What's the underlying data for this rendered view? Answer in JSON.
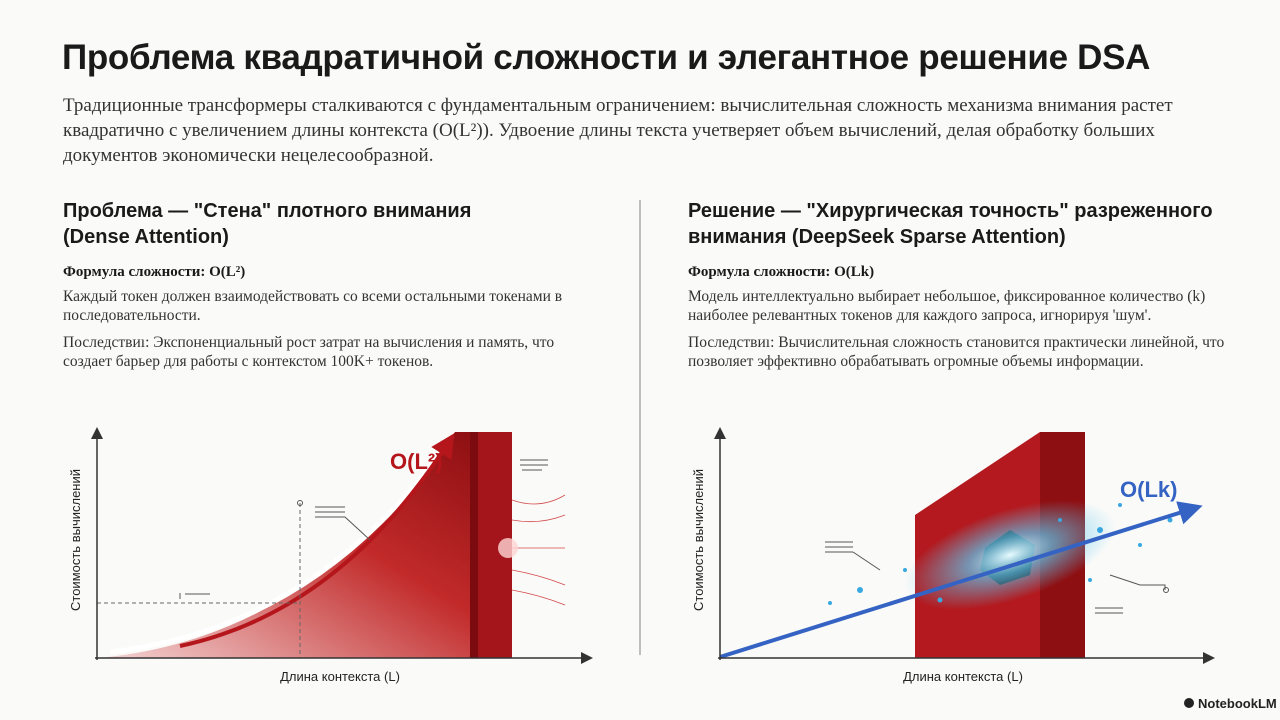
{
  "title": "Проблема квадратичной сложности и элегантное решение DSA",
  "intro": "Традиционные трансформеры сталкиваются с фундаментальным ограничением: вычислительная сложность механизма внимания растет квадратично с увеличением длины контекста (O(L²)). Удвоение длины текста учетверяет объем вычислений, делая обработку больших документов экономически нецелесообразной.",
  "columns": [
    {
      "heading": "Проблема — \"Стена\" плотного внимания (Dense Attention)",
      "formula": "Формула сложности: O(L²)",
      "description": "Каждый токен должен взаимодействовать со всеми остальными токенами в последовательности.",
      "consequence": "Последствиı: Экспоненциальный рост затрат на вычисления и память, что создает барьер для работы с контекстом 100K+ токенов.",
      "chart": {
        "curve_label": "O(L²)",
        "y_label": "Стоимость вычислений",
        "x_label": "Длина контекста (L)"
      }
    },
    {
      "heading": "Решение — \"Хирургическая точность\" разреженного внимания (DeepSeek Sparse Attention)",
      "formula": "Формула сложности: O(Lk)",
      "description": "Модель интеллектуально выбирает небольшое, фиксированное количество (k) наиболее релевантных токенов для каждого запроса, игнорируя 'шум'.",
      "consequence": "Последствиı: Вычислительная сложность становится практически линейной, что позволяет эффективно обрабатывать огромные объемы информации.",
      "chart": {
        "curve_label": "O(Lk)",
        "y_label": "Стоимость вычислений",
        "x_label": "Длина контекста (L)"
      }
    }
  ],
  "brand": "NotebookLM"
}
